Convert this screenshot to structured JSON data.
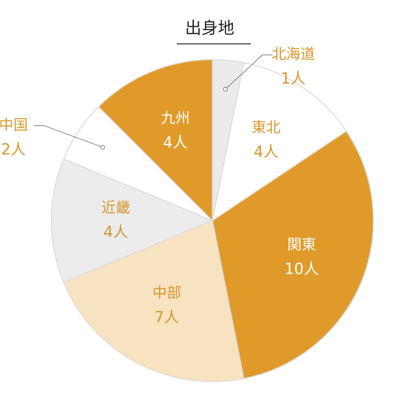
{
  "chart_data": {
    "type": "pie",
    "title": "出身地",
    "categories": [
      "北海道",
      "東北",
      "関東",
      "中部",
      "近畿",
      "中国",
      "九州"
    ],
    "values": [
      1,
      4,
      10,
      7,
      4,
      2,
      4
    ],
    "value_labels": [
      "1人",
      "4人",
      "10人",
      "7人",
      "4人",
      "2人",
      "4人"
    ],
    "colors": [
      "#ebebeb",
      "#ffffff",
      "#e09a2a",
      "#f8e3c0",
      "#ececec",
      "#ffffff",
      "#e09a2a"
    ]
  }
}
